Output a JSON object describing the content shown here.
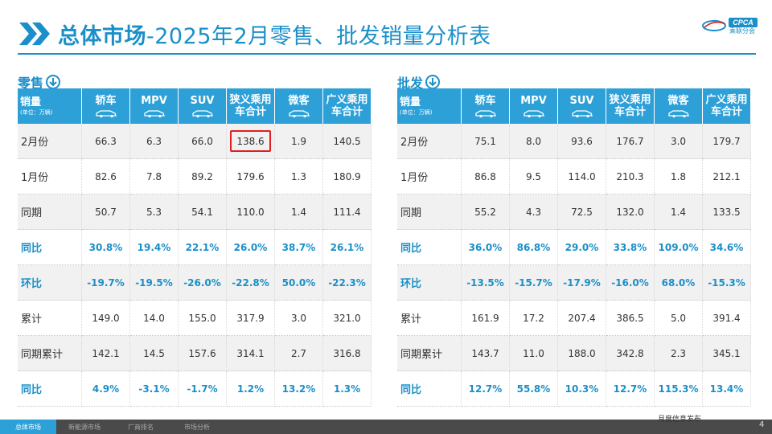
{
  "title": {
    "bold": "总体市场",
    "rest": "-2025年2月零售、批发销量分析表"
  },
  "logo": {
    "text": "CPCA",
    "sub": "乘联分会"
  },
  "retail": {
    "label": "零售",
    "header": {
      "first": "销量",
      "unit": "(单位：万辆)",
      "cols": [
        "轿车",
        "MPV",
        "SUV",
        "狭义乘用车合计",
        "微客",
        "广义乘用车合计"
      ]
    },
    "rows": [
      {
        "label": "2月份",
        "values": [
          "66.3",
          "6.3",
          "66.0",
          "138.6",
          "1.9",
          "140.5"
        ]
      },
      {
        "label": "1月份",
        "values": [
          "82.6",
          "7.8",
          "89.2",
          "179.6",
          "1.3",
          "180.9"
        ]
      },
      {
        "label": "同期",
        "values": [
          "50.7",
          "5.3",
          "54.1",
          "110.0",
          "1.4",
          "111.4"
        ]
      },
      {
        "label": "同比",
        "values": [
          "30.8%",
          "19.4%",
          "22.1%",
          "26.0%",
          "38.7%",
          "26.1%"
        ]
      },
      {
        "label": "环比",
        "values": [
          "-19.7%",
          "-19.5%",
          "-26.0%",
          "-22.8%",
          "50.0%",
          "-22.3%"
        ]
      },
      {
        "label": "累计",
        "values": [
          "149.0",
          "14.0",
          "155.0",
          "317.9",
          "3.0",
          "321.0"
        ]
      },
      {
        "label": "同期累计",
        "values": [
          "142.1",
          "14.5",
          "157.6",
          "314.1",
          "2.7",
          "316.8"
        ]
      },
      {
        "label": "同比",
        "values": [
          "4.9%",
          "-3.1%",
          "-1.7%",
          "1.2%",
          "13.2%",
          "1.3%"
        ]
      }
    ]
  },
  "wholesale": {
    "label": "批发",
    "header": {
      "first": "销量",
      "unit": "(单位：万辆)",
      "cols": [
        "轿车",
        "MPV",
        "SUV",
        "狭义乘用车合计",
        "微客",
        "广义乘用车合计"
      ]
    },
    "rows": [
      {
        "label": "2月份",
        "values": [
          "75.1",
          "8.0",
          "93.6",
          "176.7",
          "3.0",
          "179.7"
        ]
      },
      {
        "label": "1月份",
        "values": [
          "86.8",
          "9.5",
          "114.0",
          "210.3",
          "1.8",
          "212.1"
        ]
      },
      {
        "label": "同期",
        "values": [
          "55.2",
          "4.3",
          "72.5",
          "132.0",
          "1.4",
          "133.5"
        ]
      },
      {
        "label": "同比",
        "values": [
          "36.0%",
          "86.8%",
          "29.0%",
          "33.8%",
          "109.0%",
          "34.6%"
        ]
      },
      {
        "label": "环比",
        "values": [
          "-13.5%",
          "-15.7%",
          "-17.9%",
          "-16.0%",
          "68.0%",
          "-15.3%"
        ]
      },
      {
        "label": "累计",
        "values": [
          "161.9",
          "17.2",
          "207.4",
          "386.5",
          "5.0",
          "391.4"
        ]
      },
      {
        "label": "同期累计",
        "values": [
          "143.7",
          "11.0",
          "188.0",
          "342.8",
          "2.3",
          "345.1"
        ]
      },
      {
        "label": "同比",
        "values": [
          "12.7%",
          "55.8%",
          "10.3%",
          "12.7%",
          "115.3%",
          "13.4%"
        ]
      }
    ]
  },
  "footer": {
    "tabs": [
      "总体市场",
      "新能源市场",
      "厂商排名",
      "市场分析"
    ],
    "note": "月度信息发布",
    "page": "4"
  },
  "colors": {
    "accent": "#1a8fc9",
    "header_bg": "#2ea0d8",
    "highlight": "#e02020"
  }
}
